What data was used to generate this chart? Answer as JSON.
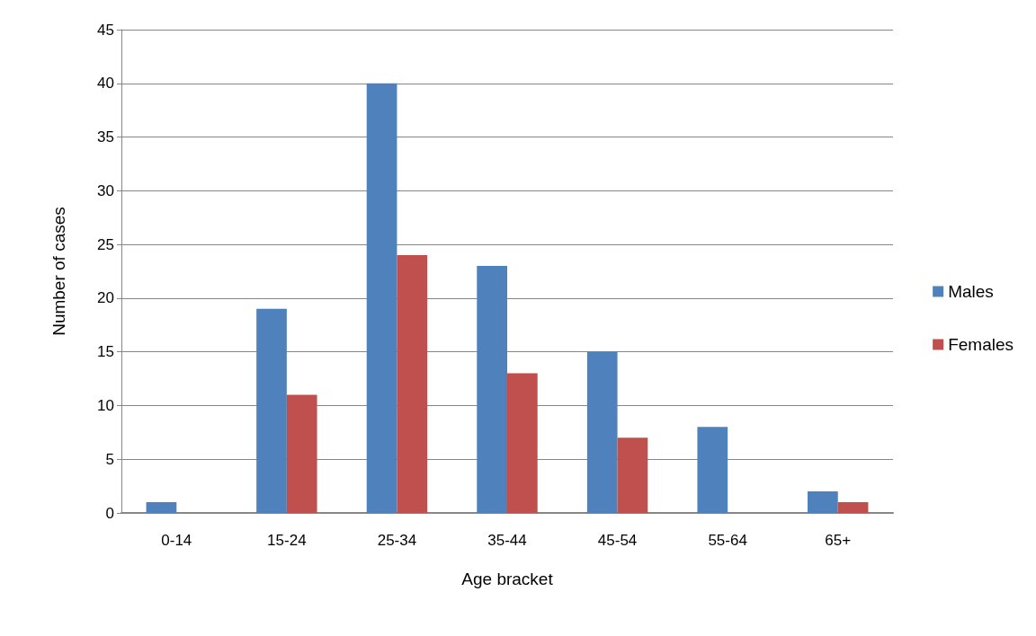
{
  "chart_data": {
    "type": "bar",
    "xlabel": "Age bracket",
    "ylabel": "Number of cases",
    "categories": [
      "0-14",
      "15-24",
      "25-34",
      "35-44",
      "45-54",
      "55-64",
      "65+"
    ],
    "series": [
      {
        "name": "Males",
        "color": "#4f81bd",
        "values": [
          1,
          19,
          40,
          23,
          15,
          8,
          2
        ]
      },
      {
        "name": "Females",
        "color": "#c0504d",
        "values": [
          0,
          11,
          24,
          13,
          7,
          0,
          1
        ]
      }
    ],
    "ylim": [
      0,
      45
    ],
    "yticks": [
      0,
      5,
      10,
      15,
      20,
      25,
      30,
      35,
      40,
      45
    ],
    "grid": "y",
    "legend": "right"
  }
}
